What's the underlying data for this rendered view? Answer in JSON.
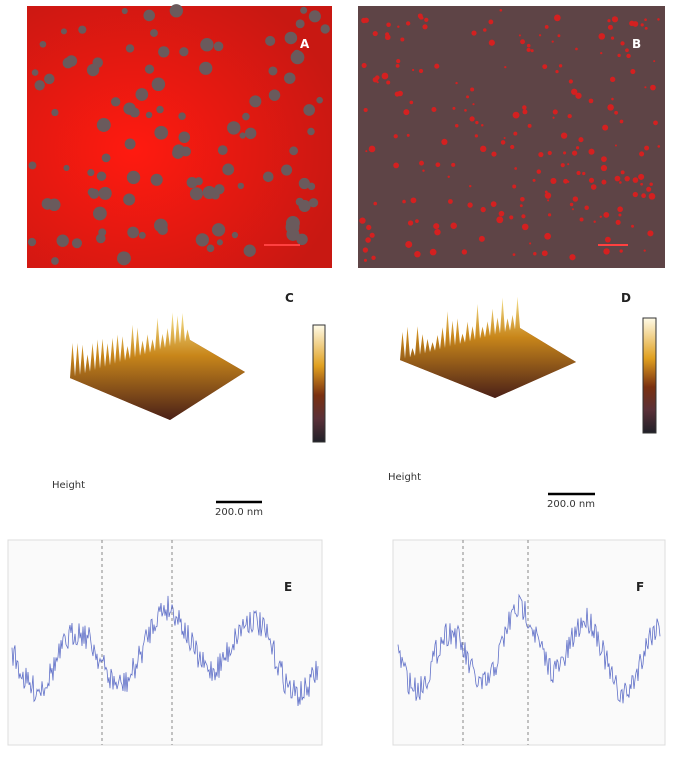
{
  "panels": [
    {
      "label": "A"
    },
    {
      "label": "B"
    },
    {
      "label": "C",
      "caption": "Height",
      "scale_bar": "200.0 nm"
    },
    {
      "label": "D",
      "caption": "Height",
      "scale_bar": "200.0 nm"
    },
    {
      "label": "E"
    },
    {
      "label": "F"
    }
  ]
}
